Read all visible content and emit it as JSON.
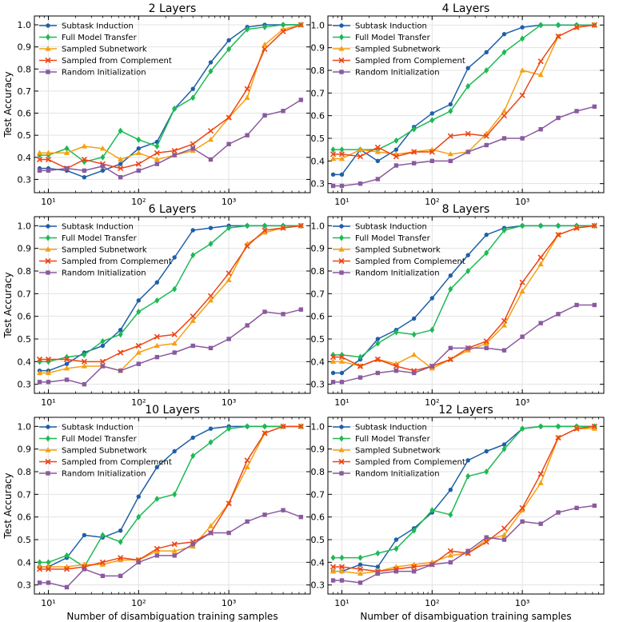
{
  "x_axis_label": "Number of disambiguation training samples",
  "y_axis_label": "Test Accuracy",
  "series_styles": [
    {
      "name": "Subtask Induction",
      "color": "#1f5fa8",
      "marker": "circle"
    },
    {
      "name": "Full Model Transfer",
      "color": "#1db954",
      "marker": "diamond"
    },
    {
      "name": "Sampled Subnetwork",
      "color": "#f5a010",
      "marker": "triangle"
    },
    {
      "name": "Sampled from Complement",
      "color": "#ec4516",
      "marker": "x"
    },
    {
      "name": "Random Initialization",
      "color": "#8a5a9e",
      "marker": "square"
    }
  ],
  "chart_data": [
    {
      "type": "line",
      "title": "2 Layers",
      "xscale": "log",
      "xlim": [
        7,
        8000
      ],
      "ylim": [
        0.24,
        1.04
      ],
      "xticks": [
        {
          "v": 10,
          "label": "10¹"
        },
        {
          "v": 100,
          "label": "10²"
        },
        {
          "v": 1000,
          "label": "10³"
        }
      ],
      "yticks": [
        0.3,
        0.4,
        0.5,
        0.6,
        0.7,
        0.8,
        0.9,
        1.0
      ],
      "ytick_labels": [
        "0.3",
        "0.4",
        "0.5",
        "0.6",
        "0.7",
        "0.8",
        "0.9",
        "1.0"
      ],
      "legend": "top-left",
      "x": [
        8,
        10,
        16,
        25,
        40,
        63,
        100,
        160,
        250,
        400,
        630,
        1000,
        1600,
        2500,
        4000,
        6300
      ],
      "series": [
        {
          "name": "Subtask Induction",
          "values": [
            0.35,
            0.35,
            0.34,
            0.31,
            0.34,
            0.37,
            0.44,
            0.47,
            0.62,
            0.71,
            0.83,
            0.93,
            0.99,
            1.0,
            1.0,
            1.0
          ]
        },
        {
          "name": "Full Model Transfer",
          "values": [
            0.41,
            0.41,
            0.44,
            0.38,
            0.4,
            0.52,
            0.48,
            0.45,
            0.62,
            0.67,
            0.79,
            0.89,
            0.98,
            0.99,
            1.0,
            1.0
          ]
        },
        {
          "name": "Sampled Subnetwork",
          "values": [
            0.42,
            0.42,
            0.42,
            0.45,
            0.44,
            0.39,
            0.42,
            0.39,
            0.41,
            0.43,
            0.48,
            0.58,
            0.67,
            0.91,
            0.98,
            1.0
          ]
        },
        {
          "name": "Sampled from Complement",
          "values": [
            0.39,
            0.39,
            0.35,
            0.39,
            0.37,
            0.35,
            0.37,
            0.42,
            0.43,
            0.46,
            0.52,
            0.58,
            0.71,
            0.89,
            0.97,
            1.0
          ]
        },
        {
          "name": "Random Initialization",
          "values": [
            0.34,
            0.34,
            0.35,
            0.34,
            0.36,
            0.31,
            0.34,
            0.37,
            0.41,
            0.44,
            0.39,
            0.46,
            0.5,
            0.59,
            0.61,
            0.66
          ]
        }
      ]
    },
    {
      "type": "line",
      "title": "4 Layers",
      "xscale": "log",
      "xlim": [
        7,
        8000
      ],
      "ylim": [
        0.26,
        1.04
      ],
      "xticks": [
        {
          "v": 10,
          "label": "10¹"
        },
        {
          "v": 100,
          "label": "10²"
        },
        {
          "v": 1000,
          "label": "10³"
        }
      ],
      "yticks": [
        0.3,
        0.4,
        0.5,
        0.6,
        0.7,
        0.8,
        0.9,
        1.0
      ],
      "ytick_labels": [
        "0.3",
        "0.4",
        "0.5",
        "0.6",
        "0.7",
        "0.8",
        "0.9",
        "1.0"
      ],
      "legend": "top-left",
      "x": [
        8,
        10,
        16,
        25,
        40,
        63,
        100,
        160,
        250,
        400,
        630,
        1000,
        1600,
        2500,
        4000,
        6300
      ],
      "series": [
        {
          "name": "Subtask Induction",
          "values": [
            0.34,
            0.34,
            0.45,
            0.4,
            0.45,
            0.55,
            0.61,
            0.65,
            0.81,
            0.88,
            0.96,
            0.99,
            1.0,
            1.0,
            1.0,
            1.0
          ]
        },
        {
          "name": "Full Model Transfer",
          "values": [
            0.45,
            0.45,
            0.45,
            0.45,
            0.49,
            0.54,
            0.58,
            0.62,
            0.73,
            0.8,
            0.88,
            0.94,
            1.0,
            1.0,
            1.0,
            1.0
          ]
        },
        {
          "name": "Sampled Subnetwork",
          "values": [
            0.41,
            0.41,
            0.45,
            0.44,
            0.43,
            0.44,
            0.45,
            0.43,
            0.44,
            0.52,
            0.62,
            0.8,
            0.78,
            0.95,
            0.99,
            1.0
          ]
        },
        {
          "name": "Sampled from Complement",
          "values": [
            0.43,
            0.43,
            0.42,
            0.46,
            0.42,
            0.44,
            0.44,
            0.51,
            0.52,
            0.51,
            0.6,
            0.69,
            0.84,
            0.95,
            0.99,
            1.0
          ]
        },
        {
          "name": "Random Initialization",
          "values": [
            0.29,
            0.29,
            0.3,
            0.32,
            0.38,
            0.39,
            0.4,
            0.4,
            0.44,
            0.47,
            0.5,
            0.5,
            0.54,
            0.59,
            0.62,
            0.64
          ]
        }
      ]
    },
    {
      "type": "line",
      "title": "6 Layers",
      "xscale": "log",
      "xlim": [
        7,
        8000
      ],
      "ylim": [
        0.26,
        1.04
      ],
      "xticks": [
        {
          "v": 10,
          "label": "10¹"
        },
        {
          "v": 100,
          "label": "10²"
        },
        {
          "v": 1000,
          "label": "10³"
        }
      ],
      "yticks": [
        0.3,
        0.4,
        0.5,
        0.6,
        0.7,
        0.8,
        0.9,
        1.0
      ],
      "ytick_labels": [
        "0.3",
        "0.4",
        "0.5",
        "0.6",
        "0.7",
        "0.8",
        "0.9",
        "1.0"
      ],
      "legend": "top-left",
      "x": [
        8,
        10,
        16,
        25,
        40,
        63,
        100,
        160,
        250,
        400,
        630,
        1000,
        1600,
        2500,
        4000,
        6300
      ],
      "series": [
        {
          "name": "Subtask Induction",
          "values": [
            0.36,
            0.36,
            0.39,
            0.44,
            0.47,
            0.54,
            0.67,
            0.75,
            0.86,
            0.98,
            0.99,
            1.0,
            1.0,
            1.0,
            1.0,
            1.0
          ]
        },
        {
          "name": "Full Model Transfer",
          "values": [
            0.4,
            0.4,
            0.42,
            0.43,
            0.49,
            0.52,
            0.62,
            0.67,
            0.72,
            0.87,
            0.92,
            0.99,
            1.0,
            1.0,
            1.0,
            1.0
          ]
        },
        {
          "name": "Sampled Subnetwork",
          "values": [
            0.35,
            0.35,
            0.37,
            0.38,
            0.38,
            0.36,
            0.44,
            0.47,
            0.48,
            0.58,
            0.67,
            0.76,
            0.92,
            0.97,
            0.99,
            1.0
          ]
        },
        {
          "name": "Sampled from Complement",
          "values": [
            0.41,
            0.41,
            0.41,
            0.4,
            0.4,
            0.44,
            0.47,
            0.51,
            0.52,
            0.6,
            0.69,
            0.79,
            0.91,
            0.98,
            0.99,
            1.0
          ]
        },
        {
          "name": "Random Initialization",
          "values": [
            0.31,
            0.31,
            0.32,
            0.3,
            0.38,
            0.36,
            0.39,
            0.42,
            0.44,
            0.47,
            0.46,
            0.5,
            0.56,
            0.62,
            0.61,
            0.63
          ]
        }
      ]
    },
    {
      "type": "line",
      "title": "8 Layers",
      "xscale": "log",
      "xlim": [
        7,
        8000
      ],
      "ylim": [
        0.26,
        1.04
      ],
      "xticks": [
        {
          "v": 10,
          "label": "10¹"
        },
        {
          "v": 100,
          "label": "10²"
        },
        {
          "v": 1000,
          "label": "10³"
        }
      ],
      "yticks": [
        0.3,
        0.4,
        0.5,
        0.6,
        0.7,
        0.8,
        0.9,
        1.0
      ],
      "ytick_labels": [
        "0.3",
        "0.4",
        "0.5",
        "0.6",
        "0.7",
        "0.8",
        "0.9",
        "1.0"
      ],
      "legend": "top-left",
      "x": [
        8,
        10,
        16,
        25,
        40,
        63,
        100,
        160,
        250,
        400,
        630,
        1000,
        1600,
        2500,
        4000,
        6300
      ],
      "series": [
        {
          "name": "Subtask Induction",
          "values": [
            0.35,
            0.35,
            0.41,
            0.5,
            0.54,
            0.59,
            0.68,
            0.78,
            0.87,
            0.96,
            0.99,
            1.0,
            1.0,
            1.0,
            1.0,
            1.0
          ]
        },
        {
          "name": "Full Model Transfer",
          "values": [
            0.43,
            0.43,
            0.42,
            0.48,
            0.53,
            0.52,
            0.54,
            0.72,
            0.8,
            0.88,
            0.98,
            1.0,
            1.0,
            1.0,
            1.0,
            1.0
          ]
        },
        {
          "name": "Sampled Subnetwork",
          "values": [
            0.4,
            0.4,
            0.38,
            0.41,
            0.39,
            0.43,
            0.37,
            0.41,
            0.45,
            0.48,
            0.56,
            0.71,
            0.83,
            0.96,
            0.99,
            1.0
          ]
        },
        {
          "name": "Sampled from Complement",
          "values": [
            0.42,
            0.42,
            0.38,
            0.41,
            0.38,
            0.36,
            0.38,
            0.41,
            0.46,
            0.49,
            0.58,
            0.75,
            0.86,
            0.96,
            0.99,
            1.0
          ]
        },
        {
          "name": "Random Initialization",
          "values": [
            0.31,
            0.31,
            0.33,
            0.35,
            0.36,
            0.35,
            0.38,
            0.46,
            0.46,
            0.46,
            0.45,
            0.51,
            0.57,
            0.61,
            0.65,
            0.65
          ]
        }
      ]
    },
    {
      "type": "line",
      "title": "10 Layers",
      "xscale": "log",
      "xlim": [
        7,
        8000
      ],
      "ylim": [
        0.26,
        1.04
      ],
      "xticks": [
        {
          "v": 10,
          "label": "10¹"
        },
        {
          "v": 100,
          "label": "10²"
        },
        {
          "v": 1000,
          "label": "10³"
        }
      ],
      "yticks": [
        0.3,
        0.4,
        0.5,
        0.6,
        0.7,
        0.8,
        0.9,
        1.0
      ],
      "ytick_labels": [
        "0.3",
        "0.4",
        "0.5",
        "0.6",
        "0.7",
        "0.8",
        "0.9",
        "1.0"
      ],
      "legend": "top-left",
      "x": [
        8,
        10,
        16,
        25,
        40,
        63,
        100,
        160,
        250,
        400,
        630,
        1000,
        1600,
        2500,
        4000,
        6300
      ],
      "series": [
        {
          "name": "Subtask Induction",
          "values": [
            0.38,
            0.38,
            0.42,
            0.52,
            0.51,
            0.54,
            0.69,
            0.82,
            0.89,
            0.95,
            0.99,
            1.0,
            1.0,
            1.0,
            1.0,
            1.0
          ]
        },
        {
          "name": "Full Model Transfer",
          "values": [
            0.4,
            0.4,
            0.43,
            0.38,
            0.52,
            0.49,
            0.6,
            0.68,
            0.7,
            0.87,
            0.93,
            0.99,
            1.0,
            1.0,
            1.0,
            1.0
          ]
        },
        {
          "name": "Sampled Subnetwork",
          "values": [
            0.38,
            0.38,
            0.38,
            0.39,
            0.39,
            0.41,
            0.41,
            0.45,
            0.45,
            0.47,
            0.56,
            0.66,
            0.82,
            0.97,
            1.0,
            1.0
          ]
        },
        {
          "name": "Sampled from Complement",
          "values": [
            0.37,
            0.37,
            0.37,
            0.38,
            0.4,
            0.42,
            0.41,
            0.46,
            0.48,
            0.49,
            0.53,
            0.66,
            0.85,
            0.97,
            1.0,
            1.0
          ]
        },
        {
          "name": "Random Initialization",
          "values": [
            0.31,
            0.31,
            0.29,
            0.37,
            0.34,
            0.34,
            0.4,
            0.43,
            0.43,
            0.48,
            0.53,
            0.53,
            0.58,
            0.61,
            0.63,
            0.6
          ]
        }
      ]
    },
    {
      "type": "line",
      "title": "12 Layers",
      "xscale": "log",
      "xlim": [
        7,
        8000
      ],
      "ylim": [
        0.26,
        1.04
      ],
      "xticks": [
        {
          "v": 10,
          "label": "10¹"
        },
        {
          "v": 100,
          "label": "10²"
        },
        {
          "v": 1000,
          "label": "10³"
        }
      ],
      "yticks": [
        0.3,
        0.4,
        0.5,
        0.6,
        0.7,
        0.8,
        0.9,
        1.0
      ],
      "ytick_labels": [
        "0.3",
        "0.4",
        "0.5",
        "0.6",
        "0.7",
        "0.8",
        "0.9",
        "1.0"
      ],
      "legend": "top-left",
      "x": [
        8,
        10,
        16,
        25,
        40,
        63,
        100,
        160,
        250,
        400,
        630,
        1000,
        1600,
        2500,
        4000,
        6300
      ],
      "series": [
        {
          "name": "Subtask Induction",
          "values": [
            0.36,
            0.36,
            0.39,
            0.38,
            0.5,
            0.55,
            0.62,
            0.72,
            0.85,
            0.89,
            0.92,
            0.99,
            1.0,
            1.0,
            1.0,
            1.0
          ]
        },
        {
          "name": "Full Model Transfer",
          "values": [
            0.42,
            0.42,
            0.42,
            0.44,
            0.46,
            0.54,
            0.63,
            0.61,
            0.78,
            0.8,
            0.9,
            0.99,
            1.0,
            1.0,
            1.0,
            1.0
          ]
        },
        {
          "name": "Sampled Subnetwork",
          "values": [
            0.36,
            0.36,
            0.35,
            0.36,
            0.38,
            0.39,
            0.4,
            0.43,
            0.44,
            0.5,
            0.52,
            0.63,
            0.75,
            0.95,
            0.99,
            0.99
          ]
        },
        {
          "name": "Sampled from Complement",
          "values": [
            0.38,
            0.38,
            0.37,
            0.36,
            0.37,
            0.38,
            0.39,
            0.45,
            0.44,
            0.49,
            0.55,
            0.64,
            0.79,
            0.95,
            0.99,
            1.0
          ]
        },
        {
          "name": "Random Initialization",
          "values": [
            0.32,
            0.32,
            0.31,
            0.35,
            0.36,
            0.36,
            0.39,
            0.4,
            0.45,
            0.51,
            0.5,
            0.58,
            0.57,
            0.62,
            0.64,
            0.65
          ]
        }
      ]
    }
  ]
}
